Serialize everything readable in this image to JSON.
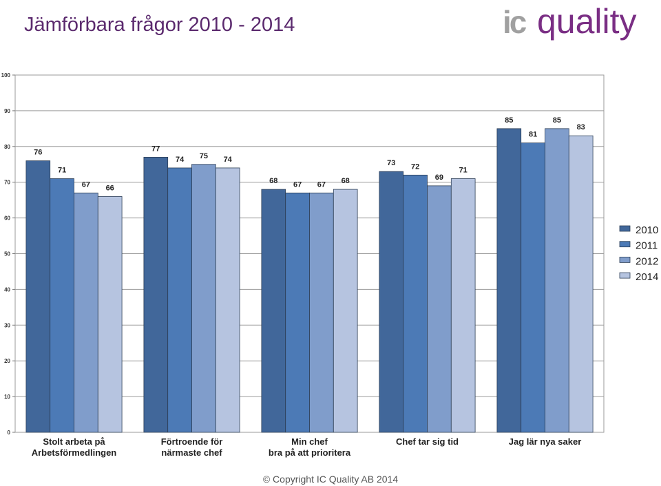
{
  "title": "Jämförbara frågor 2010 - 2014",
  "logo": {
    "prefix": "ic",
    "word": "quality",
    "prefix_color": "#a0a0a0",
    "word_color": "#7a2e84"
  },
  "copyright": "© Copyright IC Quality AB 2014",
  "chart_data": {
    "type": "bar",
    "categories": [
      [
        "Stolt arbeta på",
        "Arbetsförmedlingen"
      ],
      [
        "Förtroende för",
        "närmaste chef"
      ],
      [
        "Min chef",
        "bra på att prioritera"
      ],
      [
        "Chef tar sig tid"
      ],
      [
        "Jag lär nya saker"
      ]
    ],
    "series": [
      {
        "name": "2010",
        "color": "#41679a",
        "values": [
          76,
          77,
          68,
          73,
          85
        ]
      },
      {
        "name": "2011",
        "color": "#4c7ab6",
        "values": [
          71,
          74,
          67,
          72,
          81
        ]
      },
      {
        "name": "2012",
        "color": "#809dcb",
        "values": [
          67,
          75,
          67,
          69,
          85
        ]
      },
      {
        "name": "2014",
        "color": "#b6c4e0",
        "values": [
          66,
          74,
          68,
          71,
          83
        ]
      }
    ],
    "ylim": [
      0,
      100
    ],
    "yticks": [
      0,
      10,
      20,
      30,
      40,
      50,
      60,
      70,
      80,
      90,
      100
    ],
    "grid": true,
    "legend": "right"
  }
}
